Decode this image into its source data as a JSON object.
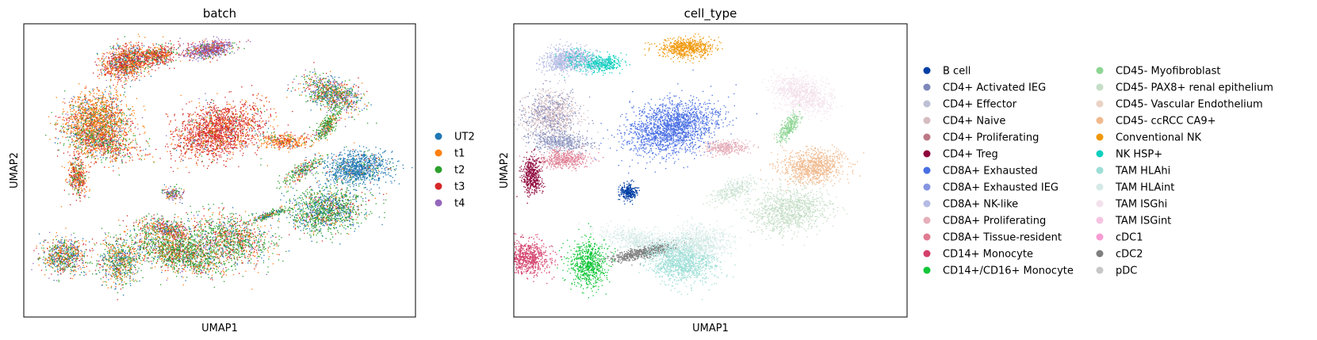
{
  "chart_data": [
    {
      "type": "scatter",
      "title": "batch",
      "xlabel": "UMAP1",
      "ylabel": "UMAP2",
      "grid": false,
      "legend_placement": "right",
      "series": [
        {
          "name": "UT2",
          "color": "#1f77b4"
        },
        {
          "name": "t1",
          "color": "#ff7f0e"
        },
        {
          "name": "t2",
          "color": "#2ca02c"
        },
        {
          "name": "t3",
          "color": "#d62728"
        },
        {
          "name": "t4",
          "color": "#9467bd"
        }
      ]
    },
    {
      "type": "scatter",
      "title": "cell_type",
      "xlabel": "UMAP1",
      "ylabel": "UMAP2",
      "grid": false,
      "legend_placement": "right",
      "series": [
        {
          "name": "B cell",
          "color": "#023fa5"
        },
        {
          "name": "CD4+ Activated IEG",
          "color": "#7d87b9"
        },
        {
          "name": "CD4+ Effector",
          "color": "#bec1d4"
        },
        {
          "name": "CD4+ Naive",
          "color": "#d6bcc0"
        },
        {
          "name": "CD4+ Proliferating",
          "color": "#bb7784"
        },
        {
          "name": "CD4+ Treg",
          "color": "#8e063b"
        },
        {
          "name": "CD8A+ Exhausted",
          "color": "#4a6fe3"
        },
        {
          "name": "CD8A+ Exhausted IEG",
          "color": "#8595e1"
        },
        {
          "name": "CD8A+ NK-like",
          "color": "#b5bbe3"
        },
        {
          "name": "CD8A+ Proliferating",
          "color": "#e6afb9"
        },
        {
          "name": "CD8A+ Tissue-resident",
          "color": "#e07b91"
        },
        {
          "name": "CD14+ Monocyte",
          "color": "#d33f6a"
        },
        {
          "name": "CD14+/CD16+ Monocyte",
          "color": "#11c638"
        },
        {
          "name": "CD45- Myofibroblast",
          "color": "#8dd593"
        },
        {
          "name": "CD45- PAX8+ renal epithelium",
          "color": "#c6dec7"
        },
        {
          "name": "CD45- Vascular Endothelium",
          "color": "#ead3c6"
        },
        {
          "name": "CD45- ccRCC CA9+",
          "color": "#f0b98d"
        },
        {
          "name": "Conventional NK",
          "color": "#ef9708"
        },
        {
          "name": "NK HSP+",
          "color": "#0fcfc0"
        },
        {
          "name": "TAM HLAhi",
          "color": "#9cded6"
        },
        {
          "name": "TAM HLAint",
          "color": "#d5eae7"
        },
        {
          "name": "TAM ISGhi",
          "color": "#f3e1eb"
        },
        {
          "name": "TAM ISGint",
          "color": "#f6c4e1"
        },
        {
          "name": "cDC1",
          "color": "#f79cd4"
        },
        {
          "name": "cDC2",
          "color": "#7f7f7f"
        },
        {
          "name": "pDC",
          "color": "#c7c7c7"
        }
      ]
    }
  ]
}
